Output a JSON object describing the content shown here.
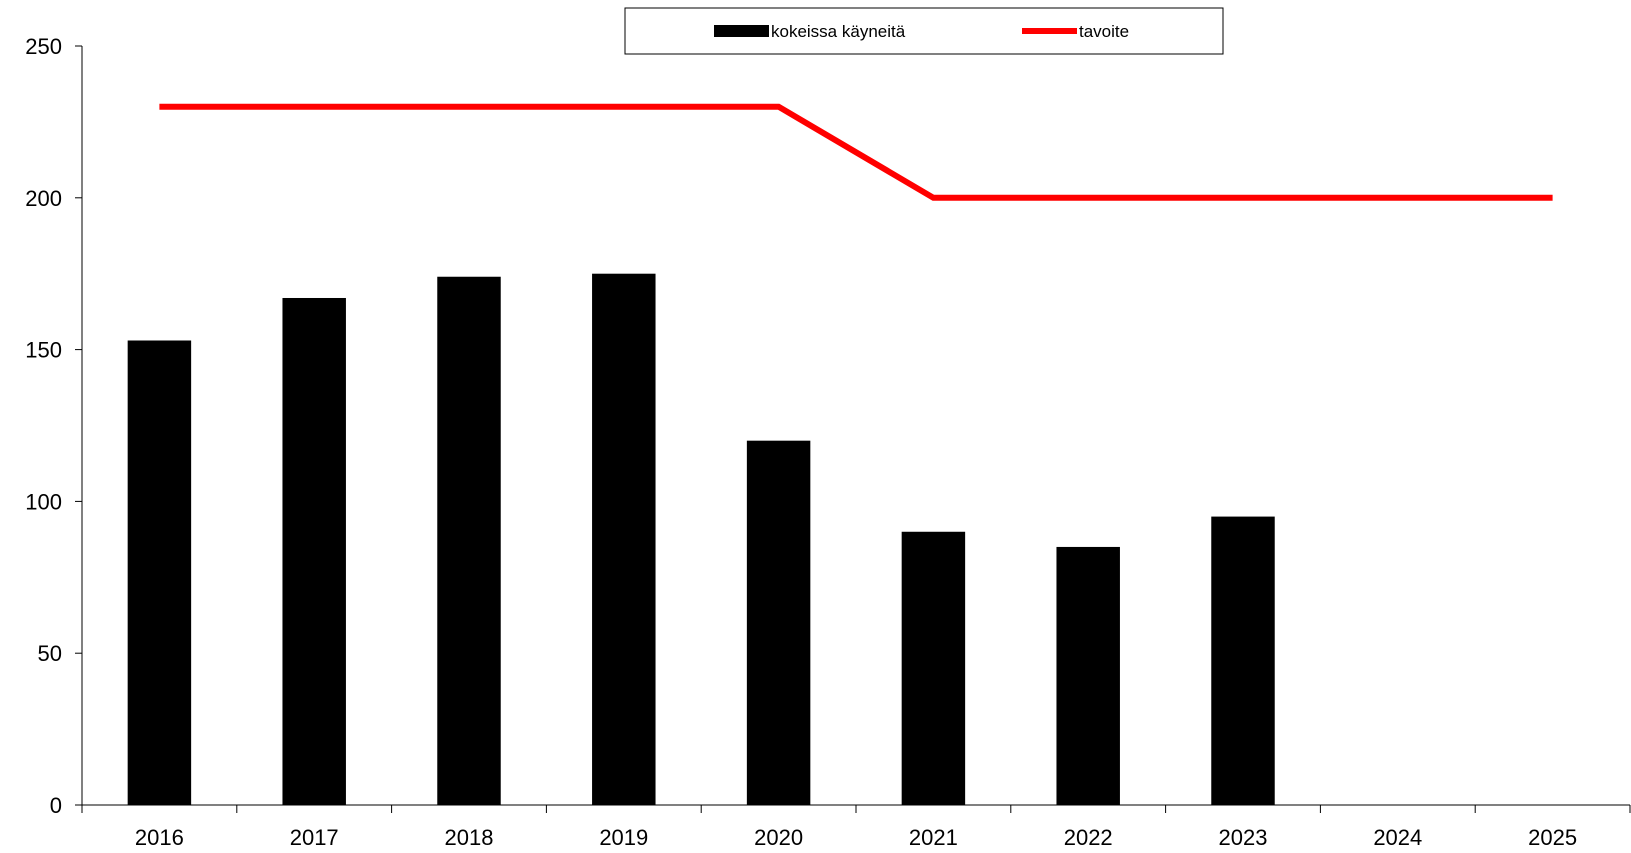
{
  "chart_data": {
    "type": "bar",
    "categories": [
      "2016",
      "2017",
      "2018",
      "2019",
      "2020",
      "2021",
      "2022",
      "2023",
      "2024",
      "2025"
    ],
    "series": [
      {
        "name": "kokeissa käyneitä",
        "type": "bar",
        "color": "#000000",
        "values": [
          153,
          167,
          174,
          175,
          120,
          90,
          85,
          95,
          null,
          null
        ]
      },
      {
        "name": "tavoite",
        "type": "line",
        "color": "#ff0000",
        "values": [
          230,
          230,
          230,
          230,
          230,
          200,
          200,
          200,
          200,
          200
        ]
      }
    ],
    "title": "",
    "xlabel": "",
    "ylabel": "",
    "ylim": [
      0,
      250
    ],
    "yticks": [
      0,
      50,
      100,
      150,
      200,
      250
    ],
    "grid": false,
    "legend_position": "top-center"
  }
}
